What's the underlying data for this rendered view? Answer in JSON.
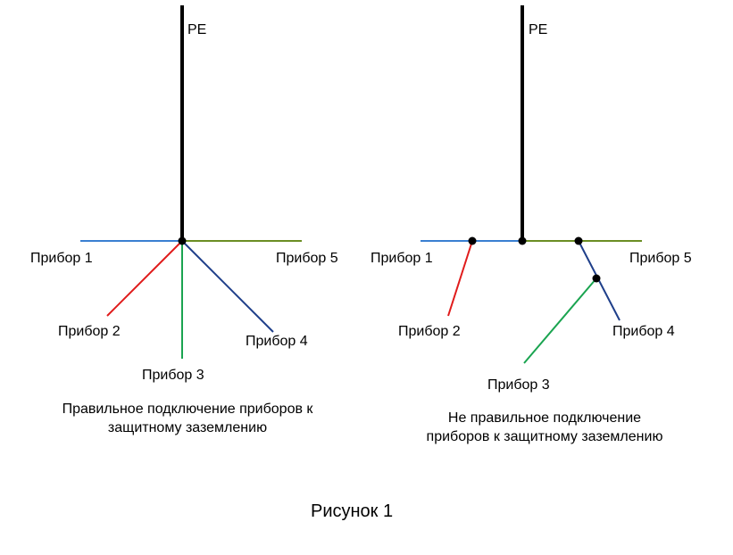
{
  "colors": {
    "pe": "#000000",
    "device1": "#3a7fd1",
    "device2": "#e01b1b",
    "device3": "#1aa450",
    "device4": "#1f3f8a",
    "device5": "#6b8e23"
  },
  "left_scheme": {
    "pe_label": "PE",
    "device1": "Прибор 1",
    "device2": "Прибор 2",
    "device3": "Прибор 3",
    "device4": "Прибор 4",
    "device5": "Прибор 5",
    "caption_line1": "Правильное подключение приборов к",
    "caption_line2": "защитному заземлению"
  },
  "right_scheme": {
    "pe_label": "PE",
    "device1": "Прибор 1",
    "device2": "Прибор 2",
    "device3": "Прибор 3",
    "device4": "Прибор 4",
    "device5": "Прибор 5",
    "caption_line1": "Не правильное подключение",
    "caption_line2": "приборов к защитному заземлению"
  },
  "figure_caption": "Рисунок 1"
}
